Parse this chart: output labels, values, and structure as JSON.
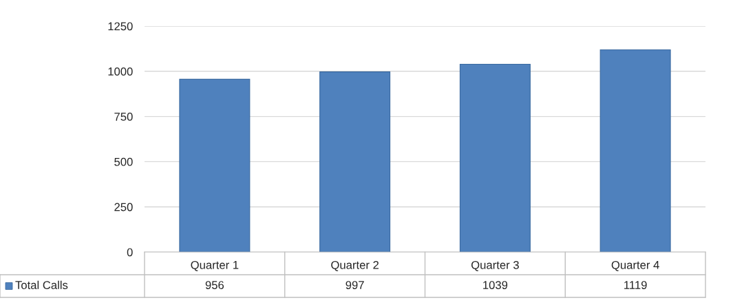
{
  "chart_data": {
    "type": "bar",
    "categories": [
      "Quarter 1",
      "Quarter 2",
      "Quarter 3",
      "Quarter 4"
    ],
    "series": [
      {
        "name": "Total Calls",
        "color": "#4f81bd",
        "values": [
          956,
          997,
          1039,
          1119
        ]
      }
    ],
    "ylim": [
      0,
      1250
    ],
    "yticks": [
      0,
      250,
      500,
      750,
      1000,
      1250
    ],
    "grid": "y",
    "data_labels": true
  }
}
